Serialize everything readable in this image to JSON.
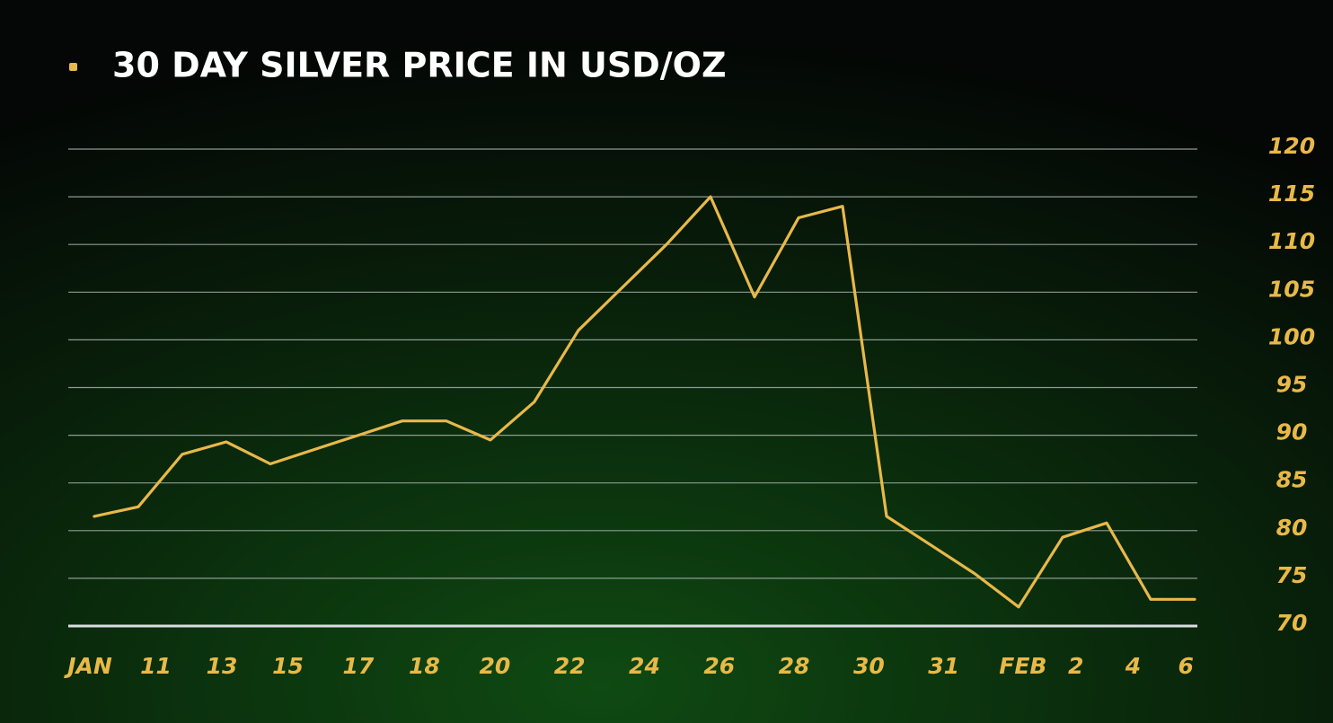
{
  "chart_data": {
    "type": "line",
    "series": [
      {
        "name": "30 DAY SILVER PRICE IN USD/OZ",
        "color": "#e8b84a",
        "values": [
          81.5,
          82.5,
          88,
          89.3,
          87,
          88.5,
          90,
          91.5,
          91.5,
          89.5,
          93.5,
          101,
          105.5,
          110,
          115,
          104.5,
          112.8,
          114,
          81.5,
          78.5,
          75.5,
          72,
          79.3,
          80.8,
          72.8,
          72.8
        ]
      }
    ],
    "x": [
      0,
      1,
      2,
      3,
      4,
      5,
      6,
      7,
      8,
      9,
      10,
      11,
      12,
      13,
      14,
      15,
      16,
      17,
      18,
      19,
      20,
      21,
      22,
      23,
      24,
      25
    ],
    "xlim": [
      -0.1,
      25
    ],
    "xticks": [
      {
        "value": -0.1,
        "label": "JAN"
      },
      {
        "value": 1.4,
        "label": "11"
      },
      {
        "value": 2.9,
        "label": "13"
      },
      {
        "value": 4.4,
        "label": "15"
      },
      {
        "value": 6,
        "label": "17"
      },
      {
        "value": 7.5,
        "label": "18"
      },
      {
        "value": 9.1,
        "label": "20"
      },
      {
        "value": 10.8,
        "label": "22"
      },
      {
        "value": 12.5,
        "label": "24"
      },
      {
        "value": 14.2,
        "label": "26"
      },
      {
        "value": 15.9,
        "label": "28"
      },
      {
        "value": 17.6,
        "label": "30"
      },
      {
        "value": 19.3,
        "label": "31"
      },
      {
        "value": 21.1,
        "label": "FEB"
      },
      {
        "value": 22.3,
        "label": "2"
      },
      {
        "value": 23.6,
        "label": "4"
      },
      {
        "value": 24.8,
        "label": "6"
      }
    ],
    "ylim": [
      70,
      120
    ],
    "yticks": [
      70,
      75,
      80,
      85,
      90,
      95,
      100,
      105,
      110,
      115,
      120
    ],
    "grid": true,
    "y_axis_side": "right"
  }
}
